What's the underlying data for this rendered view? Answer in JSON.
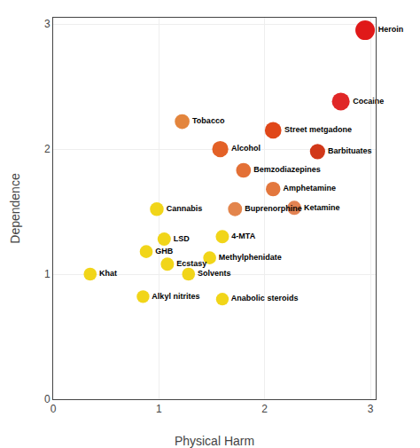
{
  "chart_data": {
    "type": "scatter",
    "marker": "bubble",
    "labels": [
      "Heroin",
      "Cocaine",
      "Street metgadone",
      "Barbituates",
      "Alcohol",
      "Tobacco",
      "Bemzodiazepines",
      "Amphetamine",
      "Buprenorphine",
      "Ketamine",
      "Cannabis",
      "4-MTA",
      "LSD",
      "Methylphenidate",
      "GHB",
      "Ecstasy",
      "Solvents",
      "Anabolic steroids",
      "Alkyl nitrites",
      "Khat"
    ],
    "x": [
      2.95,
      2.72,
      2.08,
      2.5,
      1.58,
      1.22,
      1.8,
      2.08,
      1.72,
      2.28,
      0.98,
      1.6,
      1.05,
      1.48,
      0.88,
      1.08,
      1.28,
      1.6,
      0.85,
      0.35
    ],
    "y": [
      2.95,
      2.38,
      2.15,
      1.98,
      2.0,
      2.22,
      1.83,
      1.68,
      1.52,
      1.53,
      1.52,
      1.3,
      1.28,
      1.13,
      1.18,
      1.08,
      1.0,
      0.8,
      0.82,
      1.0
    ],
    "sizes": [
      900,
      750,
      650,
      550,
      620,
      520,
      520,
      500,
      470,
      470,
      450,
      420,
      420,
      400,
      400,
      420,
      400,
      380,
      380,
      400
    ],
    "colors": [
      "#dd0000",
      "#dd1010",
      "#dd3300",
      "#cc2200",
      "#e05010",
      "#e07828",
      "#e06020",
      "#e06828",
      "#e07838",
      "#e07540",
      "#f0d000",
      "#f0d000",
      "#f0d000",
      "#f0d000",
      "#f0d000",
      "#f0d000",
      "#f0d000",
      "#f0d000",
      "#f0d000",
      "#f0d000"
    ],
    "xlabel": "Physical Harm",
    "ylabel": "Dependence",
    "xlim": [
      0,
      3.05
    ],
    "ylim": [
      0,
      3.05
    ],
    "xticks": [
      0,
      1,
      2,
      3
    ],
    "yticks": [
      0,
      1,
      2,
      3
    ],
    "grid": true
  }
}
